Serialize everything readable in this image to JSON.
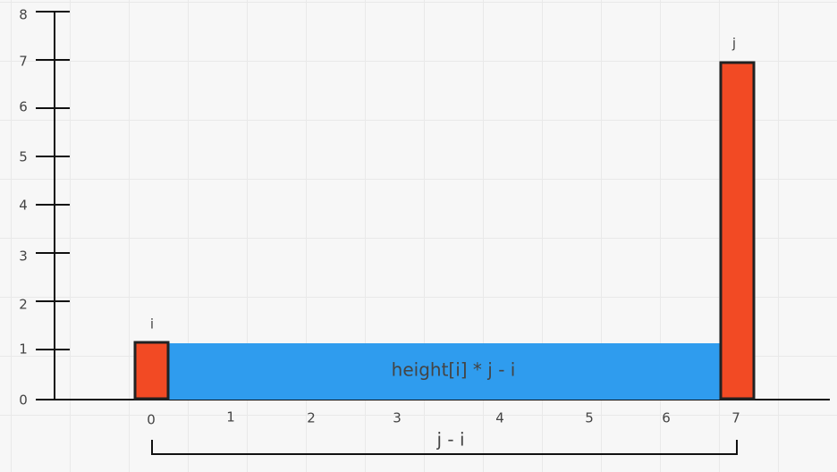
{
  "y_axis": {
    "ticks": [
      "0",
      "1",
      "2",
      "3",
      "4",
      "5",
      "6",
      "7",
      "8"
    ]
  },
  "x_axis": {
    "ticks": [
      "0",
      "1",
      "2",
      "3",
      "4",
      "5",
      "6",
      "7"
    ]
  },
  "bars": [
    {
      "index": 0,
      "height": 1.1,
      "label": "i"
    },
    {
      "index": 7,
      "height": 6.9,
      "label": "j"
    }
  ],
  "area": {
    "from_index": 0,
    "to_index": 7,
    "height": 1.1,
    "label": "height[i] * j - i"
  },
  "bracket": {
    "from_index": 0,
    "to_index": 7,
    "label": "j - i"
  },
  "colors": {
    "bar": "#f24a24",
    "bar_stroke": "#222222",
    "area": "#2f9cee",
    "axis": "#111111"
  }
}
